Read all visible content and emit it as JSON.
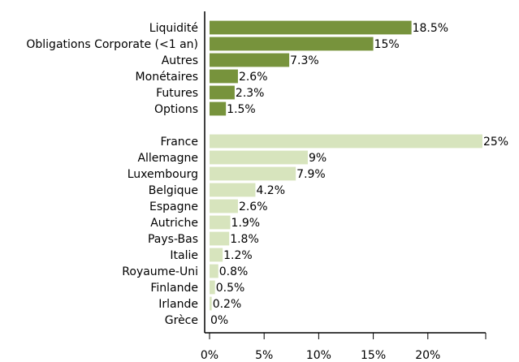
{
  "chart_data": {
    "type": "bar",
    "orientation": "horizontal",
    "categories": [
      "Liquidité",
      "Obligations Corporate (<1 an)",
      "Autres",
      "Monétaires",
      "Futures",
      "Options",
      null,
      "France",
      "Allemagne",
      "Luxembourg",
      "Belgique",
      "Espagne",
      "Autriche",
      "Pays-Bas",
      "Italie",
      "Royaume-Uni",
      "Finlande",
      "Irlande",
      "Grèce"
    ],
    "values": [
      18.5,
      15,
      7.3,
      2.6,
      2.3,
      1.5,
      null,
      25,
      9,
      7.9,
      4.2,
      2.6,
      1.9,
      1.8,
      1.2,
      0.8,
      0.5,
      0.2,
      0
    ],
    "value_labels": [
      "18.5%",
      "15%",
      "7.3%",
      "2.6%",
      "2.3%",
      "1.5%",
      null,
      "25%",
      "9%",
      "7.9%",
      "4.2%",
      "2.6%",
      "1.9%",
      "1.8%",
      "1.2%",
      "0.8%",
      "0.5%",
      "0.2%",
      "0%"
    ],
    "colors": [
      "#77933c",
      "#77933c",
      "#77933c",
      "#77933c",
      "#77933c",
      "#77933c",
      null,
      "#d7e4bd",
      "#d7e4bd",
      "#d7e4bd",
      "#d7e4bd",
      "#d7e4bd",
      "#d7e4bd",
      "#d7e4bd",
      "#d7e4bd",
      "#d7e4bd",
      "#d7e4bd",
      "#d7e4bd",
      "#d7e4bd"
    ],
    "xlim": [
      0,
      25.3
    ],
    "xticks": [
      {
        "value": 0,
        "label": "0%"
      },
      {
        "value": 5,
        "label": "5%"
      },
      {
        "value": 10,
        "label": "10%"
      },
      {
        "value": 15,
        "label": "15%"
      },
      {
        "value": 20,
        "label": "20%"
      }
    ]
  }
}
